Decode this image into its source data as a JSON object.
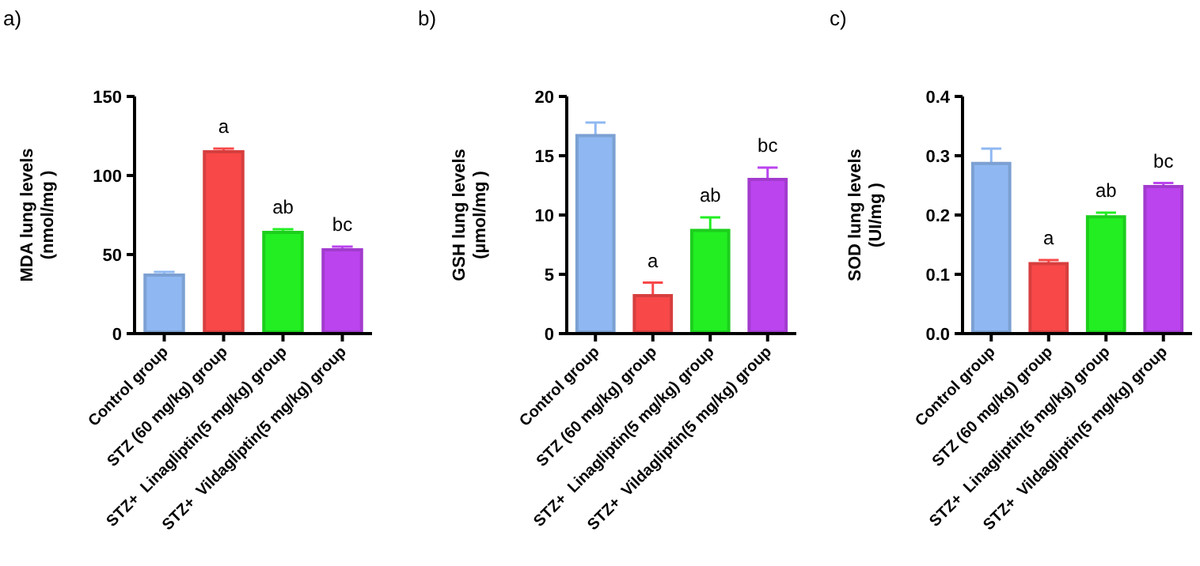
{
  "chart_data": [
    {
      "type": "bar",
      "title": "a)",
      "ylabel": "MDA lung levels\n(nmol/mg )",
      "categories": [
        "Control group",
        "STZ (60 mg/kg) group",
        "STZ+  Linagliptin(5 mg/kg) group",
        "STZ+  Vildagliptin(5 mg/kg) group"
      ],
      "values": [
        37,
        115,
        64,
        53
      ],
      "errors": [
        [
          37,
          39
        ],
        [
          115,
          117
        ],
        [
          64,
          66
        ],
        [
          53,
          55
        ]
      ],
      "colors": [
        "#8fb8f2",
        "#f84848",
        "#22ee22",
        "#bb44ee"
      ],
      "ylim": [
        0,
        150
      ],
      "yticks": [
        0,
        50,
        100,
        150
      ],
      "annotations": [
        {
          "text": "a",
          "x": "STZ (60 mg/kg) group",
          "y": 115
        },
        {
          "text": "ab",
          "x": "STZ+  Linagliptin(5 mg/kg) group",
          "y": 64
        },
        {
          "text": "bc",
          "x": "STZ+  Vildagliptin(5 mg/kg) group",
          "y": 53
        }
      ]
    },
    {
      "type": "bar",
      "title": "b)",
      "ylabel": "GSH lung levels\n(µmol/mg )",
      "categories": [
        "Control group",
        "STZ (60 mg/kg) group",
        "STZ+  Linagliptin(5 mg/kg) group",
        "STZ+  Vildagliptin(5 mg/kg) group"
      ],
      "values": [
        16.7,
        3.2,
        8.7,
        13
      ],
      "errors": [
        [
          16.7,
          17.8
        ],
        [
          3.2,
          4.3
        ],
        [
          8.7,
          9.8
        ],
        [
          13,
          14
        ]
      ],
      "colors": [
        "#8fb8f2",
        "#f84848",
        "#22ee22",
        "#bb44ee"
      ],
      "ylim": [
        0,
        20
      ],
      "yticks": [
        0,
        5,
        10,
        15,
        20
      ],
      "annotations": [
        {
          "text": "a",
          "x": "STZ (60 mg/kg) group",
          "y": 3.2
        },
        {
          "text": "ab",
          "x": "STZ+  Linagliptin(5 mg/kg) group",
          "y": 8.7
        },
        {
          "text": "bc",
          "x": "STZ+  Vildagliptin(5 mg/kg) group",
          "y": 13
        }
      ]
    },
    {
      "type": "bar",
      "title": "c)",
      "ylabel": "SOD lung levels\n(UI/mg )",
      "categories": [
        "Control group",
        "STZ (60 mg/kg) group",
        "STZ+  Linagliptin(5 mg/kg) group",
        "STZ+  Vildagliptin(5 mg/kg) group"
      ],
      "values": [
        0.287,
        0.118,
        0.197,
        0.248
      ],
      "errors": [
        [
          0.287,
          0.312
        ],
        [
          0.118,
          0.124
        ],
        [
          0.197,
          0.204
        ],
        [
          0.248,
          0.254
        ]
      ],
      "colors": [
        "#8fb8f2",
        "#f84848",
        "#22ee22",
        "#bb44ee"
      ],
      "ylim": [
        0,
        0.4
      ],
      "yticks": [
        {
          "value": 0,
          "label": "0.0"
        },
        0.1,
        0.2,
        0.3,
        0.4
      ],
      "annotations": [
        {
          "text": "a",
          "x": "STZ (60 mg/kg) group",
          "y": 0.118
        },
        {
          "text": "ab",
          "x": "STZ+  Linagliptin(5 mg/kg) group",
          "y": 0.197
        },
        {
          "text": "bc",
          "x": "STZ+  Vildagliptin(5 mg/kg) group",
          "y": 0.248
        }
      ]
    }
  ]
}
